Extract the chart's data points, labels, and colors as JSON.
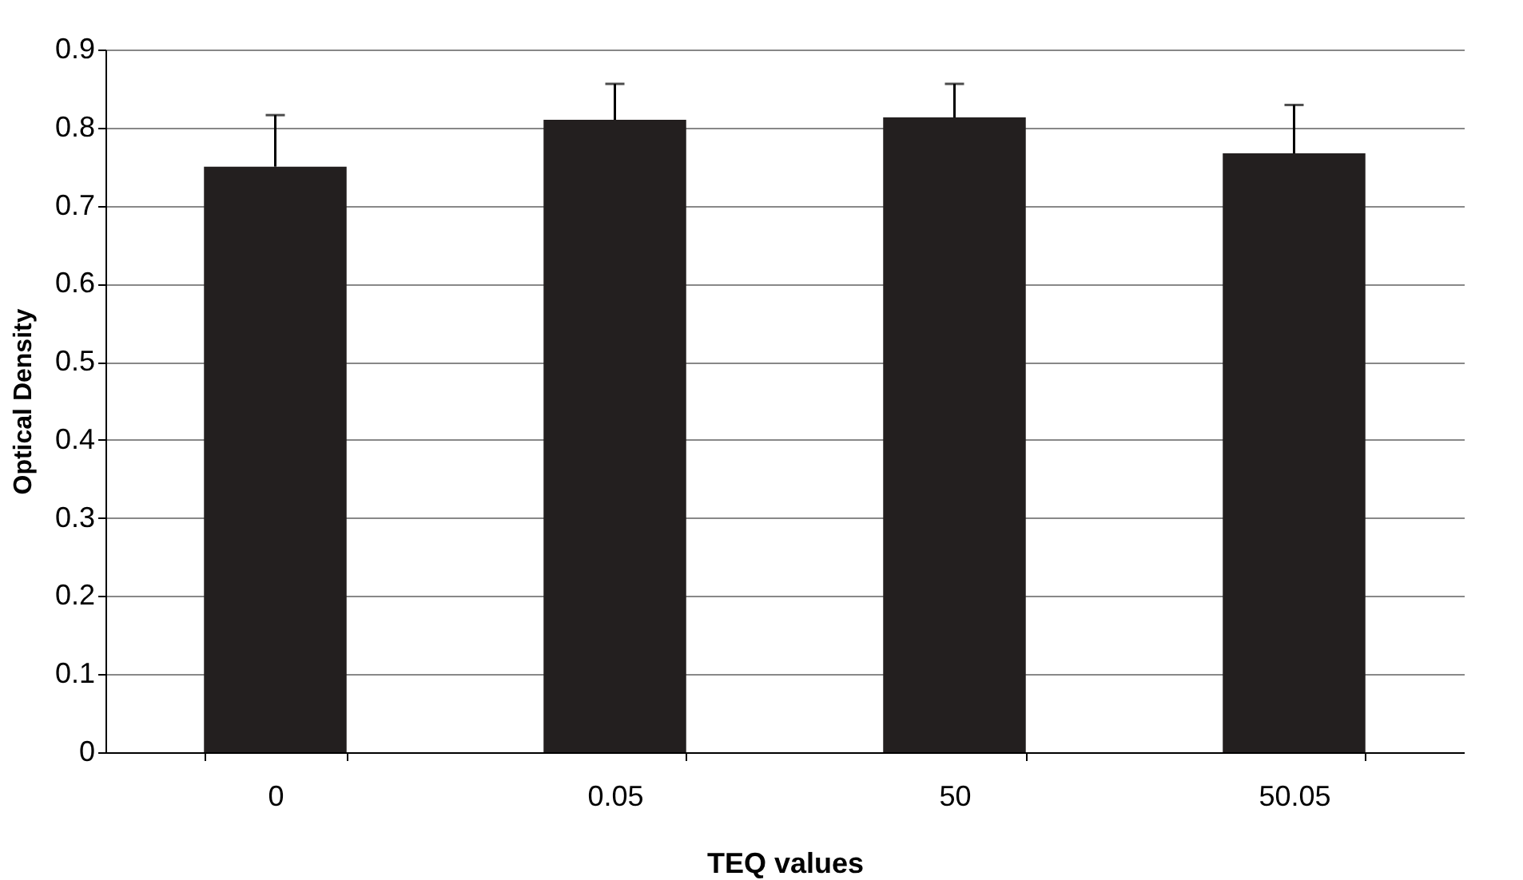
{
  "chart_data": {
    "type": "bar",
    "xlabel": "TEQ values",
    "ylabel": "Optical Density",
    "categories": [
      "0",
      "0.05",
      "50",
      "50.05"
    ],
    "values": [
      0.75,
      0.81,
      0.813,
      0.767
    ],
    "errors": [
      [
        0.75,
        0.816
      ],
      [
        0.81,
        0.856
      ],
      [
        0.813,
        0.856
      ],
      [
        0.767,
        0.829
      ]
    ],
    "color": "#231f1f",
    "ylim": [
      0,
      0.9
    ],
    "yticks": [
      0,
      0.1,
      0.2,
      0.3,
      0.4,
      0.5,
      0.6,
      0.7,
      0.8,
      0.9
    ],
    "grid": "y"
  }
}
